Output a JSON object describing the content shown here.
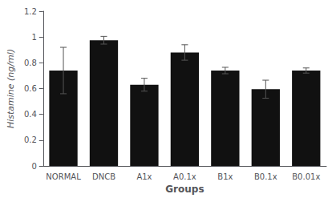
{
  "chart_data": {
    "type": "bar",
    "categories": [
      "NORMAL",
      "DNCB",
      "A1x",
      "A0.1x",
      "B1x",
      "B0.1x",
      "B0.01x"
    ],
    "values": [
      0.74,
      0.975,
      0.63,
      0.88,
      0.74,
      0.595,
      0.74
    ],
    "errors": [
      0.18,
      0.03,
      0.05,
      0.06,
      0.025,
      0.07,
      0.02
    ],
    "color": "#111111",
    "xlabel": "Groups",
    "ylabel": "Histamine (ng/ml)",
    "ylim": [
      0,
      1.2
    ],
    "yticks": [
      0,
      0.2,
      0.4,
      0.6,
      0.8,
      1,
      1.2
    ],
    "grid": false
  }
}
